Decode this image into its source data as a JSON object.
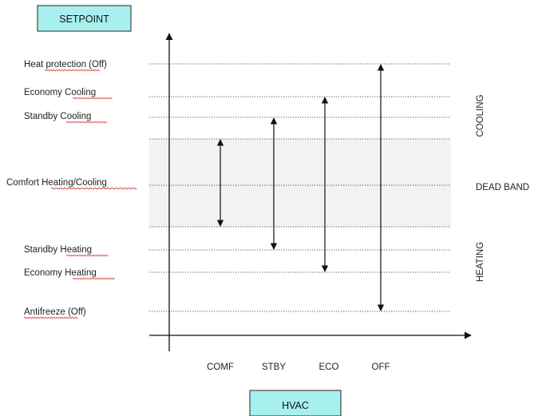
{
  "diagram": {
    "title_box": "SETPOINT",
    "axis_box": "HVAC",
    "levels": [
      {
        "id": "heat-protection",
        "label": "Heat protection (Off)"
      },
      {
        "id": "economy-cooling",
        "label": "Economy Cooling"
      },
      {
        "id": "standby-cooling",
        "label": "Standby Cooling"
      },
      {
        "id": "comfort",
        "label": "Comfort Heating/Cooling"
      },
      {
        "id": "standby-heating",
        "label": "Standby Heating"
      },
      {
        "id": "economy-heating",
        "label": "Economy Heating"
      },
      {
        "id": "antifreeze",
        "label": "Antifreeze (Off)"
      }
    ],
    "modes": [
      "COMF",
      "STBY",
      "ECO",
      "OFF"
    ],
    "zones": {
      "cooling": "COOLING",
      "dead_band": "DEAD BAND",
      "heating": "HEATING"
    },
    "colors": {
      "box_fill": "#a8f0ee",
      "box_border": "#222222",
      "dead_band_fill": "#f2f2f2",
      "spell_underline": "#d23a3a"
    }
  }
}
